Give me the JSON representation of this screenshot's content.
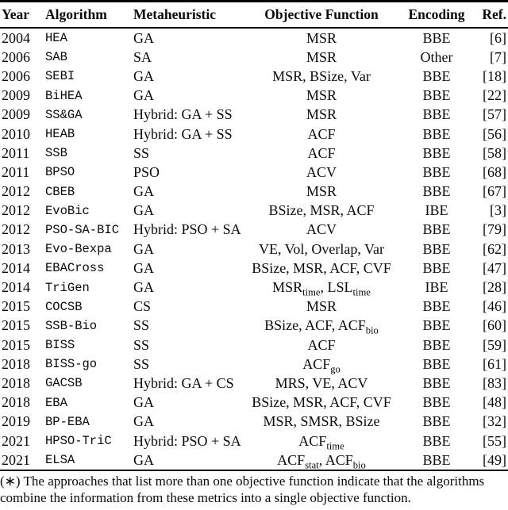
{
  "colors": {
    "text": "#0a0a0a",
    "background": "#ffffff",
    "rule": "#000000"
  },
  "table": {
    "columns": [
      {
        "label": "Year"
      },
      {
        "label": "Algorithm"
      },
      {
        "label": "Metaheuristic"
      },
      {
        "label": "Objective Function"
      },
      {
        "label": "Encoding"
      },
      {
        "label": "Ref."
      }
    ],
    "rows": [
      {
        "year": "2004",
        "algorithm": "HEA",
        "metaheuristic": "GA",
        "objective": "MSR",
        "encoding": "BBE",
        "ref": "[6]"
      },
      {
        "year": "2006",
        "algorithm": "SAB",
        "metaheuristic": "SA",
        "objective": "MSR",
        "encoding": "Other",
        "ref": "[7]"
      },
      {
        "year": "2006",
        "algorithm": "SEBI",
        "metaheuristic": "GA",
        "objective": "MSR, BSize, Var",
        "encoding": "BBE",
        "ref": "[18]"
      },
      {
        "year": "2009",
        "algorithm": "BiHEA",
        "metaheuristic": "GA",
        "objective": "MSR",
        "encoding": "BBE",
        "ref": "[22]"
      },
      {
        "year": "2009",
        "algorithm": "SS&GA",
        "metaheuristic": "Hybrid: GA + SS",
        "objective": "MSR",
        "encoding": "BBE",
        "ref": "[57]"
      },
      {
        "year": "2010",
        "algorithm": "HEAB",
        "metaheuristic": "Hybrid: GA + SS",
        "objective": "ACF",
        "encoding": "BBE",
        "ref": "[56]"
      },
      {
        "year": "2011",
        "algorithm": "SSB",
        "metaheuristic": "SS",
        "objective": "ACF",
        "encoding": "BBE",
        "ref": "[58]"
      },
      {
        "year": "2011",
        "algorithm": "BPSO",
        "metaheuristic": "PSO",
        "objective": "ACV",
        "encoding": "BBE",
        "ref": "[68]"
      },
      {
        "year": "2012",
        "algorithm": "CBEB",
        "metaheuristic": "GA",
        "objective": "MSR",
        "encoding": "BBE",
        "ref": "[67]"
      },
      {
        "year": "2012",
        "algorithm": "EvoBic",
        "metaheuristic": "GA",
        "objective": "BSize, MSR, ACF",
        "encoding": "IBE",
        "ref": "[3]"
      },
      {
        "year": "2012",
        "algorithm": "PSO-SA-BIC",
        "metaheuristic": "Hybrid: PSO + SA",
        "objective": "ACV",
        "encoding": "BBE",
        "ref": "[79]"
      },
      {
        "year": "2013",
        "algorithm": "Evo-Bexpa",
        "metaheuristic": "GA",
        "objective": "VE, Vol, Overlap, Var",
        "encoding": "BBE",
        "ref": "[62]"
      },
      {
        "year": "2014",
        "algorithm": "EBACross",
        "metaheuristic": "GA",
        "objective": "BSize, MSR, ACF, CVF",
        "encoding": "BBE",
        "ref": "[47]"
      },
      {
        "year": "2014",
        "algorithm": "TriGen",
        "metaheuristic": "GA",
        "objective": "MSR_{time}, LSL_{time}",
        "encoding": "IBE",
        "ref": "[28]"
      },
      {
        "year": "2015",
        "algorithm": "COCSB",
        "metaheuristic": "CS",
        "objective": "MSR",
        "encoding": "BBE",
        "ref": "[46]"
      },
      {
        "year": "2015",
        "algorithm": "SSB-Bio",
        "metaheuristic": "SS",
        "objective": "BSize, ACF, ACF_{bio}",
        "encoding": "BBE",
        "ref": "[60]"
      },
      {
        "year": "2015",
        "algorithm": "BISS",
        "metaheuristic": "SS",
        "objective": "ACF",
        "encoding": "BBE",
        "ref": "[59]"
      },
      {
        "year": "2018",
        "algorithm": "BISS-go",
        "metaheuristic": "SS",
        "objective": "ACF_{go}",
        "encoding": "BBE",
        "ref": "[61]"
      },
      {
        "year": "2018",
        "algorithm": "GACSB",
        "metaheuristic": "Hybrid: GA + CS",
        "objective": "MRS, VE, ACV",
        "encoding": "BBE",
        "ref": "[83]"
      },
      {
        "year": "2018",
        "algorithm": "EBA",
        "metaheuristic": "GA",
        "objective": "BSize, MSR, ACF, CVF",
        "encoding": "BBE",
        "ref": "[48]"
      },
      {
        "year": "2019",
        "algorithm": "BP-EBA",
        "metaheuristic": "GA",
        "objective": "MSR, SMSR, BSize",
        "encoding": "BBE",
        "ref": "[32]"
      },
      {
        "year": "2021",
        "algorithm": "HPSO-TriC",
        "metaheuristic": "Hybrid: PSO + SA",
        "objective": "ACF_{time}",
        "encoding": "BBE",
        "ref": "[55]"
      },
      {
        "year": "2021",
        "algorithm": "ELSA",
        "metaheuristic": "GA",
        "objective": "ACF_{stat}, ACF_{bio}",
        "encoding": "BBE",
        "ref": "[49]"
      }
    ]
  },
  "footnote": {
    "line1": "(∗) The approaches that list more than one objective function indicate that the algorithms",
    "line2": "combine the information from these metrics into a single objective function."
  }
}
